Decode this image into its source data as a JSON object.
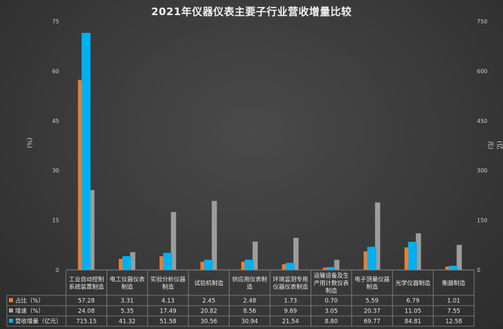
{
  "chart_data": {
    "type": "bar",
    "title": "2021年仪器仪表主要子行业营收增量比较",
    "ylabel_left": "(%)",
    "ylabel_right": "(亿元)",
    "ylim_left": [
      0,
      75
    ],
    "ylim_right": [
      0,
      750
    ],
    "yticks_left": [
      "0",
      "15",
      "30",
      "45",
      "60",
      "75"
    ],
    "yticks_right": [
      "0",
      "150",
      "300",
      "450",
      "600",
      "750"
    ],
    "categories": [
      [
        "工业自动控制",
        "系统装置制造"
      ],
      [
        "电工仪器仪表",
        "制造"
      ],
      [
        "实验分析仪器",
        "制造"
      ],
      [
        "试验机制造"
      ],
      [
        "供应用仪表制",
        "造"
      ],
      [
        "环境监测专用",
        "仪器仪表制造"
      ],
      [
        "运输设备及生",
        "产用计数仪表",
        "制造"
      ],
      [
        "电子测量仪器",
        "制造"
      ],
      [
        "光学仪器制造"
      ],
      [
        "衡器制造"
      ]
    ],
    "series": [
      {
        "name": "占比（%）",
        "axis": "left",
        "color": "#ed7d31",
        "values": [
          57.28,
          3.31,
          4.13,
          2.45,
          2.48,
          1.73,
          0.7,
          5.59,
          6.79,
          1.01
        ],
        "labels": [
          "57.28",
          "3.31",
          "4.13",
          "2.45",
          "2.48",
          "1.73",
          "0.70",
          "5.59",
          "6.79",
          "1.01"
        ]
      },
      {
        "name": "增速（%）",
        "axis": "left",
        "color": "#a5a5a5",
        "values": [
          24.08,
          5.35,
          17.49,
          20.82,
          8.56,
          9.69,
          3.05,
          20.37,
          11.05,
          7.55
        ],
        "labels": [
          "24.08",
          "5.35",
          "17.49",
          "20.82",
          "8.56",
          "9.69",
          "3.05",
          "20.37",
          "11.05",
          "7.55"
        ]
      },
      {
        "name": "营收增量（亿元）",
        "axis": "right",
        "color": "#00b0f0",
        "values": [
          715.15,
          41.32,
          51.58,
          30.56,
          30.94,
          21.54,
          8.8,
          69.77,
          84.81,
          12.58
        ],
        "labels": [
          "715.15",
          "41.32",
          "51.58",
          "30.56",
          "30.94",
          "21.54",
          "8.80",
          "69.77",
          "84.81",
          "12.58"
        ]
      }
    ],
    "grid": false,
    "legend": "data-table"
  }
}
